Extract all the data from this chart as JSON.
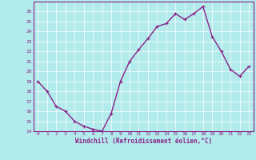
{
  "x": [
    0,
    1,
    2,
    3,
    4,
    5,
    6,
    7,
    8,
    9,
    10,
    11,
    12,
    13,
    14,
    15,
    16,
    17,
    18,
    19,
    20,
    21,
    22,
    23
  ],
  "y": [
    19,
    18,
    16.5,
    16,
    15,
    14.5,
    14.2,
    14,
    15.8,
    19,
    21,
    22.2,
    23.3,
    24.5,
    24.8,
    25.8,
    25.2,
    25.8,
    26.5,
    23.5,
    22,
    20.2,
    19.5,
    20.5
  ],
  "line_color": "#882288",
  "marker": "+",
  "marker_size": 3,
  "bg_color": "#b2ebeb",
  "grid_color": "#ffffff",
  "xlabel": "Windchill (Refroidissement éolien,°C)",
  "xlabel_color": "#882288",
  "tick_color": "#882288",
  "ylim": [
    14,
    27
  ],
  "xlim": [
    -0.5,
    23.5
  ],
  "yticks": [
    14,
    15,
    16,
    17,
    18,
    19,
    20,
    21,
    22,
    23,
    24,
    25,
    26
  ],
  "xticks": [
    0,
    1,
    2,
    3,
    4,
    5,
    6,
    7,
    8,
    9,
    10,
    11,
    12,
    13,
    14,
    15,
    16,
    17,
    18,
    19,
    20,
    21,
    22,
    23
  ],
  "linewidth": 1.0,
  "spine_color": "#882288"
}
